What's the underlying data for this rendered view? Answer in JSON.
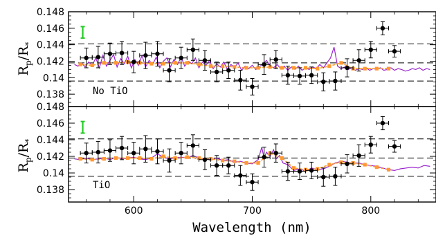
{
  "chart_data": [
    {
      "type": "line",
      "panel": "top",
      "annotation": "No TiO",
      "ylabel_base": "R",
      "ylabel_sub": "p",
      "ylabel_sep": "/R",
      "ylabel_sub2": "*",
      "xlim": [
        545,
        855
      ],
      "ylim": [
        0.1365,
        0.148
      ],
      "yticks": [
        "0.138",
        "0.14",
        "0.142",
        "0.144",
        "0.146",
        "0.148"
      ],
      "ytick_values": [
        0.138,
        0.14,
        0.142,
        0.144,
        0.146,
        0.148
      ],
      "dashed_levels": [
        0.1396,
        0.1418,
        0.1441
      ],
      "green_errorbar": {
        "x": 557,
        "y_low": 0.1448,
        "y_high": 0.1462,
        "color": "#22cc22"
      },
      "model_color": "#9922cc",
      "binned_color": "#ff9933",
      "data_color": "#000000",
      "model_line": {
        "x": [
          550,
          553,
          556,
          559,
          562,
          565,
          568,
          571,
          574,
          577,
          580,
          583,
          586,
          589,
          592,
          595,
          598,
          601,
          604,
          607,
          610,
          613,
          616,
          619,
          622,
          625,
          628,
          631,
          634,
          637,
          640,
          643,
          646,
          649,
          652,
          655,
          658,
          661,
          664,
          667,
          670,
          673,
          676,
          679,
          682,
          685,
          688,
          691,
          694,
          697,
          700,
          703,
          706,
          709,
          712,
          715,
          718,
          721,
          724,
          727,
          730,
          733,
          736,
          739,
          742,
          745,
          748,
          751,
          754,
          757,
          760,
          763,
          766,
          769,
          772,
          775,
          778,
          781,
          784,
          787,
          790,
          793,
          796,
          799,
          802,
          805,
          808,
          811,
          814,
          817,
          820,
          823,
          826,
          829,
          832,
          835,
          838,
          841,
          844,
          847,
          850
        ],
        "y": [
          0.1416,
          0.1414,
          0.1418,
          0.1413,
          0.1419,
          0.1415,
          0.1424,
          0.1412,
          0.1427,
          0.1414,
          0.1421,
          0.1428,
          0.1413,
          0.1423,
          0.1417,
          0.1426,
          0.1412,
          0.1422,
          0.1415,
          0.1427,
          0.1413,
          0.1421,
          0.1416,
          0.1425,
          0.1412,
          0.142,
          0.1424,
          0.1413,
          0.1422,
          0.1416,
          0.1425,
          0.1414,
          0.142,
          0.1417,
          0.1424,
          0.1412,
          0.1419,
          0.1415,
          0.1421,
          0.1411,
          0.1417,
          0.1413,
          0.1419,
          0.141,
          0.1416,
          0.1412,
          0.1418,
          0.1409,
          0.1414,
          0.1411,
          0.1415,
          0.141,
          0.1413,
          0.1417,
          0.1421,
          0.1414,
          0.1412,
          0.1416,
          0.1411,
          0.1414,
          0.1409,
          0.1413,
          0.141,
          0.1414,
          0.1409,
          0.1412,
          0.141,
          0.1413,
          0.1411,
          0.1416,
          0.1412,
          0.1418,
          0.1424,
          0.1437,
          0.1414,
          0.1411,
          0.1413,
          0.141,
          0.1412,
          0.1409,
          0.1411,
          0.141,
          0.1412,
          0.1409,
          0.1411,
          0.141,
          0.1412,
          0.1409,
          0.141,
          0.1412,
          0.1409,
          0.1411,
          0.141,
          0.1408,
          0.1409,
          0.1411,
          0.141,
          0.1412,
          0.1409,
          0.1411,
          0.141
        ]
      },
      "binned_model": {
        "x": [
          555,
          565,
          575,
          585,
          595,
          605,
          615,
          625,
          635,
          645,
          655,
          665,
          675,
          685,
          695,
          705,
          715,
          725,
          735,
          745,
          755,
          765,
          775,
          785,
          795,
          805,
          815
        ],
        "y": [
          0.1416,
          0.1415,
          0.1418,
          0.1418,
          0.1419,
          0.1418,
          0.1417,
          0.1417,
          0.1418,
          0.1418,
          0.1416,
          0.1414,
          0.1414,
          0.1413,
          0.1412,
          0.1412,
          0.1413,
          0.1412,
          0.1412,
          0.1412,
          0.1411,
          0.1414,
          0.1418,
          0.1411,
          0.1411,
          0.1411,
          0.1411
        ]
      },
      "observations": {
        "x": [
          560,
          570,
          580,
          590,
          600,
          610,
          620,
          630,
          640,
          650,
          660,
          670,
          680,
          690,
          700,
          710,
          720,
          730,
          740,
          750,
          760,
          770,
          780,
          790,
          800,
          810,
          820
        ],
        "y": [
          0.1424,
          0.1425,
          0.1429,
          0.143,
          0.1419,
          0.1427,
          0.1429,
          0.1409,
          0.1424,
          0.1434,
          0.1421,
          0.1407,
          0.1409,
          0.1397,
          0.1389,
          0.1416,
          0.1422,
          0.1403,
          0.1402,
          0.1403,
          0.1395,
          0.1396,
          0.1412,
          0.1421,
          0.1434,
          0.146,
          0.1432
        ],
        "yerr": [
          0.0012,
          0.0013,
          0.0013,
          0.0014,
          0.0013,
          0.0016,
          0.0015,
          0.0014,
          0.0013,
          0.0013,
          0.0012,
          0.0012,
          0.001,
          0.0012,
          0.001,
          0.0012,
          0.0011,
          0.0011,
          0.001,
          0.001,
          0.0011,
          0.0011,
          0.0011,
          0.0013,
          0.001,
          0.0008,
          0.0007
        ],
        "xerr": [
          5,
          5,
          5,
          5,
          5,
          5,
          5,
          5,
          5,
          5,
          5,
          5,
          5,
          5,
          5,
          5,
          5,
          5,
          5,
          5,
          5,
          5,
          5,
          5,
          5,
          5,
          5
        ]
      }
    },
    {
      "type": "line",
      "panel": "bottom",
      "annotation": "TiO",
      "ylabel_base": "R",
      "ylabel_sub": "p",
      "ylabel_sep": "/R",
      "ylabel_sub2": "*",
      "xlabel": "Wavelength (nm)",
      "xlim": [
        545,
        855
      ],
      "ylim": [
        0.1365,
        0.148
      ],
      "xticks": [
        "600",
        "700",
        "800"
      ],
      "xtick_values": [
        600,
        700,
        800
      ],
      "yticks": [
        "0.138",
        "0.14",
        "0.142",
        "0.144",
        "0.146",
        "0.148"
      ],
      "ytick_values": [
        0.138,
        0.14,
        0.142,
        0.144,
        0.146,
        0.148
      ],
      "dashed_levels": [
        0.1396,
        0.1418,
        0.1441
      ],
      "green_errorbar": {
        "x": 557,
        "y_low": 0.1448,
        "y_high": 0.1462,
        "color": "#22cc22"
      },
      "model_color": "#9922cc",
      "binned_color": "#ff9933",
      "data_color": "#000000",
      "model_line": {
        "x": [
          550,
          555,
          560,
          565,
          570,
          575,
          580,
          585,
          590,
          595,
          600,
          605,
          610,
          615,
          620,
          625,
          630,
          635,
          640,
          645,
          650,
          655,
          660,
          665,
          670,
          675,
          680,
          685,
          690,
          695,
          700,
          705,
          708,
          710,
          712,
          715,
          718,
          720,
          723,
          726,
          730,
          735,
          740,
          745,
          750,
          755,
          760,
          765,
          770,
          775,
          780,
          785,
          790,
          795,
          800,
          805,
          810,
          815,
          820,
          825,
          830,
          835,
          840,
          845,
          850
        ],
        "y": [
          0.1417,
          0.1416,
          0.1418,
          0.1416,
          0.1417,
          0.1418,
          0.1416,
          0.1419,
          0.1417,
          0.1418,
          0.1419,
          0.1417,
          0.1416,
          0.1418,
          0.1423,
          0.1419,
          0.1417,
          0.1418,
          0.1419,
          0.1418,
          0.1421,
          0.1418,
          0.1417,
          0.1416,
          0.1418,
          0.1415,
          0.1416,
          0.1413,
          0.1414,
          0.1412,
          0.1411,
          0.1416,
          0.1431,
          0.1418,
          0.1425,
          0.142,
          0.1428,
          0.1417,
          0.1421,
          0.1412,
          0.141,
          0.1403,
          0.1405,
          0.1402,
          0.1406,
          0.1404,
          0.1405,
          0.1408,
          0.1412,
          0.1414,
          0.1413,
          0.1412,
          0.1412,
          0.141,
          0.1409,
          0.1408,
          0.1406,
          0.1404,
          0.1403,
          0.1405,
          0.1406,
          0.1407,
          0.1406,
          0.1409,
          0.1408
        ]
      },
      "binned_model": {
        "x": [
          555,
          565,
          575,
          585,
          595,
          605,
          615,
          625,
          635,
          645,
          655,
          665,
          675,
          685,
          695,
          705,
          715,
          725,
          735,
          745,
          755,
          765,
          775,
          785,
          795,
          805,
          815
        ],
        "y": [
          0.1417,
          0.1416,
          0.1417,
          0.1418,
          0.1418,
          0.1418,
          0.1417,
          0.142,
          0.1418,
          0.1419,
          0.1418,
          0.1417,
          0.1415,
          0.1414,
          0.1412,
          0.1412,
          0.1424,
          0.1418,
          0.1406,
          0.1404,
          0.1405,
          0.141,
          0.1413,
          0.1412,
          0.141,
          0.1407,
          0.1404
        ]
      },
      "observations": {
        "x": [
          560,
          570,
          580,
          590,
          600,
          610,
          620,
          630,
          640,
          650,
          660,
          670,
          680,
          690,
          700,
          710,
          720,
          730,
          740,
          750,
          760,
          770,
          780,
          790,
          800,
          810,
          820
        ],
        "y": [
          0.1424,
          0.1425,
          0.1427,
          0.143,
          0.1424,
          0.1429,
          0.1426,
          0.1415,
          0.1424,
          0.1433,
          0.1416,
          0.1409,
          0.1409,
          0.1397,
          0.1389,
          0.1419,
          0.1424,
          0.1402,
          0.1402,
          0.1403,
          0.1395,
          0.1396,
          0.1411,
          0.1421,
          0.1434,
          0.146,
          0.1432
        ],
        "yerr": [
          0.0012,
          0.0013,
          0.0013,
          0.0014,
          0.0013,
          0.0016,
          0.0015,
          0.0014,
          0.0013,
          0.0013,
          0.0012,
          0.0012,
          0.001,
          0.0012,
          0.001,
          0.0012,
          0.0011,
          0.0011,
          0.001,
          0.001,
          0.0011,
          0.0011,
          0.0011,
          0.0013,
          0.001,
          0.0008,
          0.0007
        ],
        "xerr": [
          5,
          5,
          5,
          5,
          5,
          5,
          5,
          5,
          5,
          5,
          5,
          5,
          5,
          5,
          5,
          5,
          5,
          5,
          5,
          5,
          5,
          5,
          5,
          5,
          5,
          5,
          5
        ]
      }
    }
  ]
}
